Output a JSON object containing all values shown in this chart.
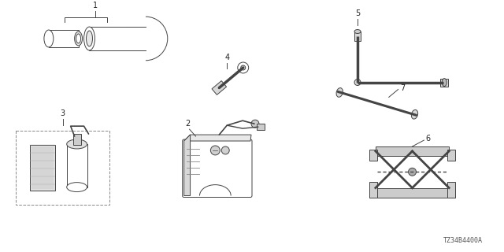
{
  "background_color": "#ffffff",
  "diagram_code": "TZ34B4400A",
  "line_color": "#444444",
  "text_color": "#222222",
  "figsize": [
    6.4,
    3.2
  ],
  "dpi": 100
}
